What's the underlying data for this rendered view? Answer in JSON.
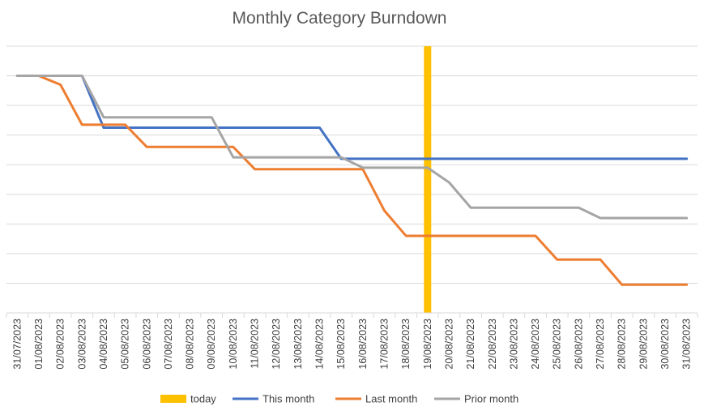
{
  "chart_data": {
    "type": "line",
    "title": "Monthly Category Burndown",
    "xlabel": "",
    "ylabel": "",
    "categories": [
      "31/07/2023",
      "01/08/2023",
      "02/08/2023",
      "03/08/2023",
      "04/08/2023",
      "05/08/2023",
      "06/08/2023",
      "07/08/2023",
      "08/08/2023",
      "09/08/2023",
      "10/08/2023",
      "11/08/2023",
      "12/08/2023",
      "13/08/2023",
      "14/08/2023",
      "15/08/2023",
      "16/08/2023",
      "17/08/2023",
      "18/08/2023",
      "19/08/2023",
      "20/08/2023",
      "21/08/2023",
      "22/08/2023",
      "23/08/2023",
      "24/08/2023",
      "25/08/2023",
      "26/08/2023",
      "27/08/2023",
      "28/08/2023",
      "29/08/2023",
      "30/08/2023",
      "31/08/2023"
    ],
    "y_axis_labels_shown": false,
    "ylim": [
      0,
      9
    ],
    "grid": true,
    "legend_position": "bottom",
    "today_marker": {
      "name": "today",
      "category": "19/08/2023",
      "color": "#FFC000"
    },
    "series": [
      {
        "name": "This month",
        "color": "#4472C4",
        "values": [
          8,
          8,
          8,
          8,
          6.25,
          6.25,
          6.25,
          6.25,
          6.25,
          6.25,
          6.25,
          6.25,
          6.25,
          6.25,
          6.25,
          5.2,
          5.2,
          5.2,
          5.2,
          5.2,
          5.2,
          5.2,
          5.2,
          5.2,
          5.2,
          5.2,
          5.2,
          5.2,
          5.2,
          5.2,
          5.2,
          5.2
        ]
      },
      {
        "name": "Last month",
        "color": "#ED7D31",
        "values": [
          8,
          8,
          7.7,
          6.35,
          6.35,
          6.35,
          5.6,
          5.6,
          5.6,
          5.6,
          5.6,
          4.85,
          4.85,
          4.85,
          4.85,
          4.85,
          4.85,
          3.45,
          2.6,
          2.6,
          2.6,
          2.6,
          2.6,
          2.6,
          2.6,
          1.8,
          1.8,
          1.8,
          0.95,
          0.95,
          0.95,
          0.95
        ]
      },
      {
        "name": "Prior month",
        "color": "#A5A5A5",
        "values": [
          8,
          8,
          8,
          8,
          6.6,
          6.6,
          6.6,
          6.6,
          6.6,
          6.6,
          5.25,
          5.25,
          5.25,
          5.25,
          5.25,
          5.25,
          4.9,
          4.9,
          4.9,
          4.9,
          4.4,
          3.55,
          3.55,
          3.55,
          3.55,
          3.55,
          3.55,
          3.2,
          3.2,
          3.2,
          3.2,
          3.2
        ]
      }
    ]
  }
}
